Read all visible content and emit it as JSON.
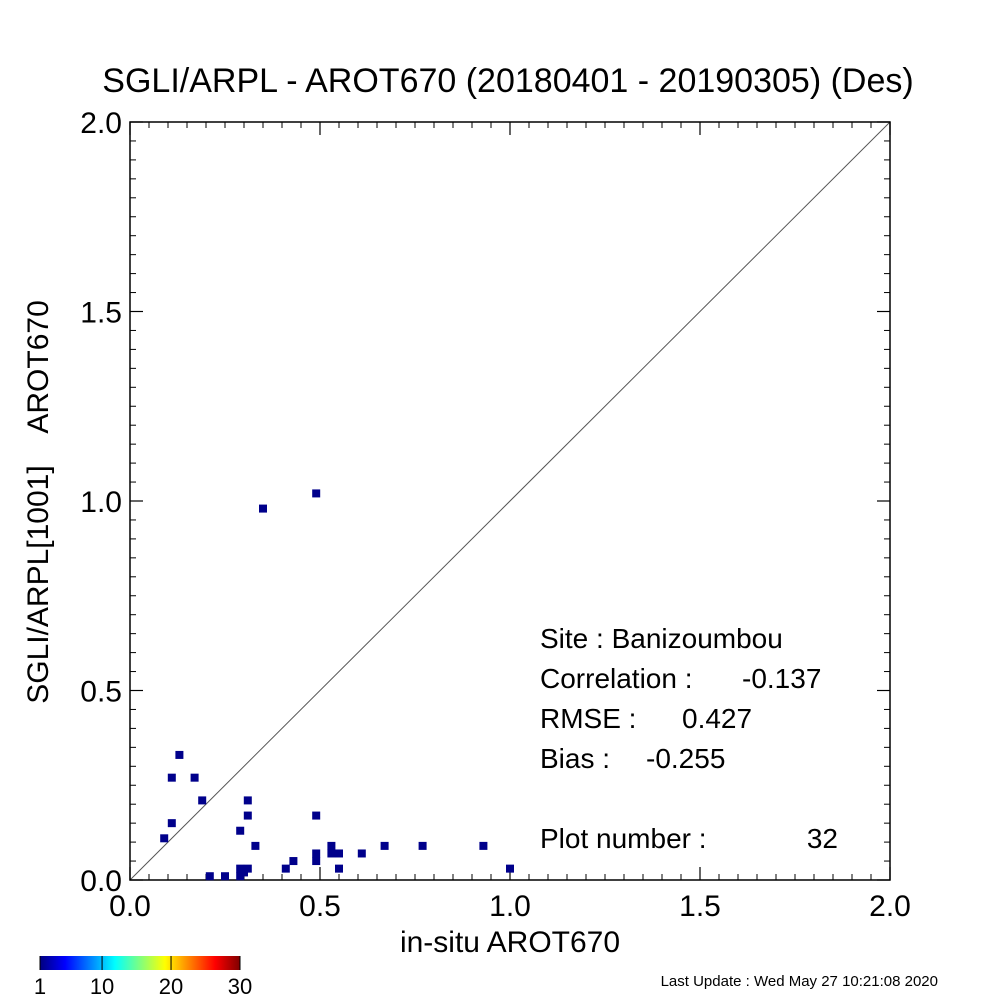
{
  "chart_data": {
    "type": "scatter",
    "title": "SGLI/ARPL - AROT670 (20180401 - 20190305) (Des)",
    "xlabel": "in-situ AROT670",
    "ylabel": "SGLI/ARPL[1001]    AROT670",
    "xlim": [
      0.0,
      2.0
    ],
    "ylim": [
      0.0,
      2.0
    ],
    "xticks": [
      "0.0",
      "0.5",
      "1.0",
      "1.5",
      "2.0"
    ],
    "yticks": [
      "0.0",
      "0.5",
      "1.0",
      "1.5",
      "2.0"
    ],
    "xtick_values": [
      0.0,
      0.5,
      1.0,
      1.5,
      2.0
    ],
    "ytick_values": [
      0.0,
      0.5,
      1.0,
      1.5,
      2.0
    ],
    "one_to_one_line": true,
    "grid": false,
    "marker_color": "#00008b",
    "points": [
      {
        "x": 0.09,
        "y": 0.11
      },
      {
        "x": 0.11,
        "y": 0.15
      },
      {
        "x": 0.11,
        "y": 0.27
      },
      {
        "x": 0.13,
        "y": 0.33
      },
      {
        "x": 0.17,
        "y": 0.27
      },
      {
        "x": 0.19,
        "y": 0.21
      },
      {
        "x": 0.21,
        "y": 0.01
      },
      {
        "x": 0.25,
        "y": 0.01
      },
      {
        "x": 0.29,
        "y": 0.13
      },
      {
        "x": 0.29,
        "y": 0.01
      },
      {
        "x": 0.29,
        "y": 0.03
      },
      {
        "x": 0.31,
        "y": 0.03
      },
      {
        "x": 0.31,
        "y": 0.17
      },
      {
        "x": 0.31,
        "y": 0.21
      },
      {
        "x": 0.33,
        "y": 0.09
      },
      {
        "x": 0.35,
        "y": 0.98
      },
      {
        "x": 0.41,
        "y": 0.03
      },
      {
        "x": 0.43,
        "y": 0.05
      },
      {
        "x": 0.49,
        "y": 1.02
      },
      {
        "x": 0.49,
        "y": 0.17
      },
      {
        "x": 0.49,
        "y": 0.07
      },
      {
        "x": 0.49,
        "y": 0.05
      },
      {
        "x": 0.53,
        "y": 0.09
      },
      {
        "x": 0.53,
        "y": 0.07
      },
      {
        "x": 0.55,
        "y": 0.07
      },
      {
        "x": 0.55,
        "y": 0.03
      },
      {
        "x": 0.61,
        "y": 0.07
      },
      {
        "x": 0.67,
        "y": 0.09
      },
      {
        "x": 0.77,
        "y": 0.09
      },
      {
        "x": 0.93,
        "y": 0.09
      },
      {
        "x": 1.0,
        "y": 0.03
      },
      {
        "x": 0.3,
        "y": 0.02
      }
    ],
    "stats": {
      "site_label": "Site : Banizoumbou",
      "corr_label": "Correlation :",
      "corr_value": "-0.137",
      "rmse_label": "RMSE :",
      "rmse_value": "0.427",
      "bias_label": "Bias :",
      "bias_value": "-0.255",
      "plot_label": "Plot number :",
      "plot_value": "32"
    },
    "colorbar": {
      "ticks": [
        "1",
        "10",
        "20",
        "30"
      ],
      "tick_values": [
        1,
        10,
        20,
        30
      ],
      "range": [
        1,
        30
      ],
      "colors": [
        "#00007f",
        "#0000ff",
        "#007fff",
        "#00ffff",
        "#7fff7f",
        "#ffff00",
        "#ff7f00",
        "#ff0000",
        "#7f0000"
      ]
    }
  },
  "footer": {
    "last_update": "Last Update : Wed May 27 10:21:08 2020"
  }
}
